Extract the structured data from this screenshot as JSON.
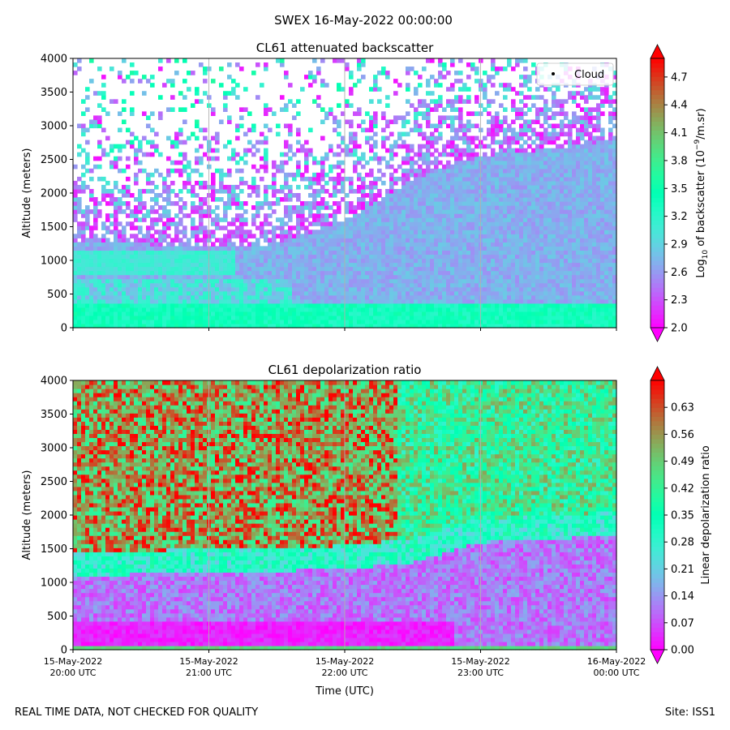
{
  "figure": {
    "suptitle": "SWEX 16-May-2022 00:00:00",
    "footer_left": "REAL TIME DATA, NOT CHECKED FOR QUALITY",
    "footer_right": "Site: ISS1"
  },
  "chart_data": [
    {
      "type": "heatmap",
      "title": "CL61 attenuated backscatter",
      "ylabel": "Altitude (meters)",
      "xlabel": "",
      "ylim": [
        0,
        4000
      ],
      "yticks": [
        0,
        500,
        1000,
        1500,
        2000,
        2500,
        3000,
        3500,
        4000
      ],
      "xlim_hours": [
        20,
        24
      ],
      "xticks_hours": [
        20,
        21,
        22,
        23,
        24
      ],
      "xtick_labels": [],
      "grid": "vertical lines at hourly ticks",
      "legend": {
        "entries": [
          "Cloud"
        ],
        "location": "upper right"
      },
      "colormap": "rainbow",
      "colorbar": {
        "label_prefix": "Log",
        "label_sub": "10",
        "label_mid": " of backscatter (10",
        "label_sup": "−9",
        "label_suffix": "/m.sr)",
        "vmin": 2.0,
        "vmax": 4.9,
        "extend": "both",
        "ticks": [
          2.0,
          2.3,
          2.6,
          2.9,
          3.2,
          3.5,
          3.8,
          4.1,
          4.4,
          4.7
        ],
        "tick_labels": [
          "2.0",
          "2.3",
          "2.6",
          "2.9",
          "3.2",
          "3.5",
          "3.8",
          "4.1",
          "4.4",
          "4.7"
        ]
      },
      "features": {
        "boundary_layer_top_m": [
          [
            20.0,
            1300
          ],
          [
            21.0,
            1200
          ],
          [
            21.5,
            1250
          ],
          [
            22.0,
            1600
          ],
          [
            22.5,
            2200
          ],
          [
            23.0,
            2550
          ],
          [
            23.5,
            2650
          ],
          [
            24.0,
            2800
          ]
        ],
        "noise_region": "sparse speckle above boundary layer, mostly 2.0–3.4"
      }
    },
    {
      "type": "heatmap",
      "title": "CL61 depolarization ratio",
      "ylabel": "Altitude (meters)",
      "xlabel": "Time (UTC)",
      "ylim": [
        0,
        4000
      ],
      "yticks": [
        0,
        500,
        1000,
        1500,
        2000,
        2500,
        3000,
        3500,
        4000
      ],
      "xlim_hours": [
        20,
        24
      ],
      "xticks_hours": [
        20,
        21,
        22,
        23,
        24
      ],
      "xtick_labels": [
        [
          "15-May-2022",
          "20:00 UTC"
        ],
        [
          "15-May-2022",
          "21:00 UTC"
        ],
        [
          "15-May-2022",
          "22:00 UTC"
        ],
        [
          "15-May-2022",
          "23:00 UTC"
        ],
        [
          "16-May-2022",
          "00:00 UTC"
        ]
      ],
      "grid": "vertical lines at hourly ticks",
      "colormap": "rainbow",
      "colorbar": {
        "label": "Linear depolarization ratio",
        "vmin": 0.0,
        "vmax": 0.7,
        "extend": "both",
        "ticks": [
          0.0,
          0.07,
          0.14,
          0.21,
          0.28,
          0.35,
          0.42,
          0.49,
          0.56,
          0.63
        ],
        "tick_labels": [
          "0.00",
          "0.07",
          "0.14",
          "0.21",
          "0.28",
          "0.35",
          "0.42",
          "0.49",
          "0.56",
          "0.63"
        ]
      },
      "features": {
        "low_depol_layer_top_m": [
          [
            20.0,
            1100
          ],
          [
            21.0,
            1150
          ],
          [
            22.0,
            1200
          ],
          [
            22.5,
            1300
          ],
          [
            23.0,
            1600
          ],
          [
            24.0,
            1700
          ]
        ],
        "upper_region": "high depolarization 0.45–0.7 above ~1500 m before 22:30, moderate 0.3–0.5 after"
      }
    }
  ]
}
